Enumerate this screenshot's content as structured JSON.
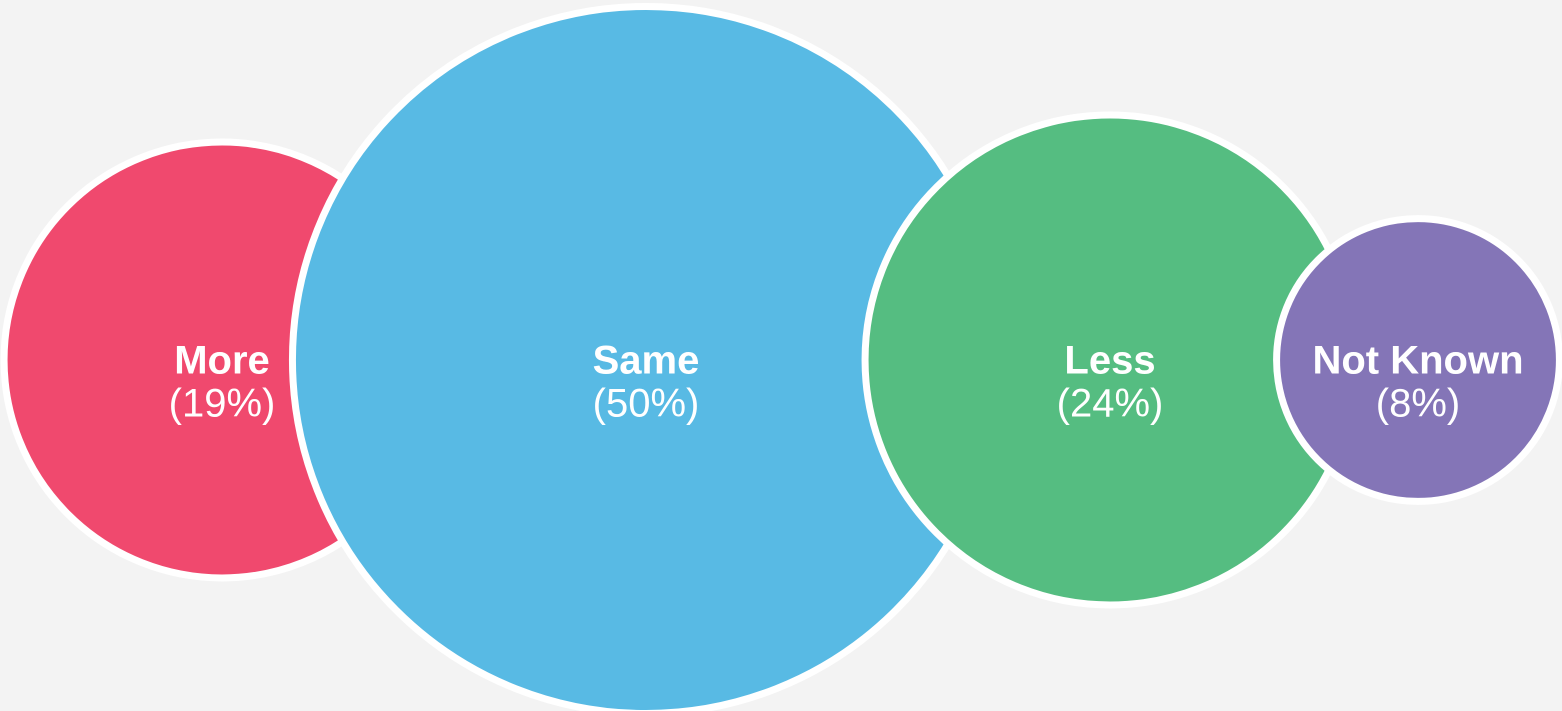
{
  "chart_data": {
    "type": "bubble",
    "categories": [
      "More",
      "Same",
      "Less",
      "Not Known"
    ],
    "values": [
      19,
      50,
      24,
      8
    ],
    "value_labels": [
      "(19%)",
      "(50%)",
      "(24%)",
      "(8%)"
    ],
    "colors": [
      "#f0496e",
      "#58bae4",
      "#55bd81",
      "#8475b7"
    ]
  }
}
